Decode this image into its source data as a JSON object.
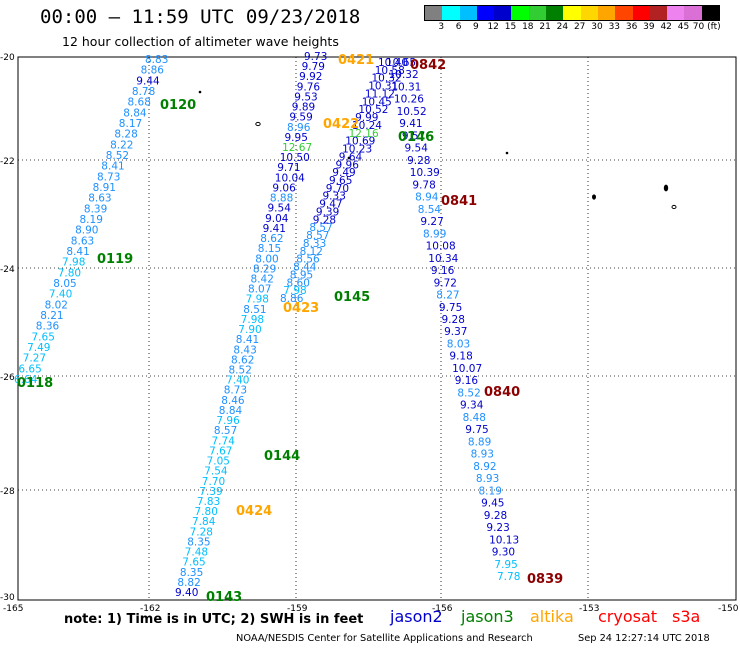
{
  "title": "00:00 – 11:59 UTC 09/23/2018",
  "subtitle": "12 hour collection of altimeter wave heights",
  "colorbar": {
    "colors": [
      "#808080",
      "#00ffff",
      "#00bfff",
      "#0000ff",
      "#0000cd",
      "#00ff00",
      "#32cd32",
      "#008000",
      "#ffff00",
      "#ffd700",
      "#ffa500",
      "#ff4500",
      "#ff0000",
      "#b22222",
      "#ee82ee",
      "#da70d6",
      "#000000"
    ],
    "labels": [
      "3",
      "6",
      "9",
      "12",
      "15",
      "18",
      "21",
      "24",
      "27",
      "30",
      "33",
      "36",
      "39",
      "42",
      "45",
      "70 (ft)"
    ]
  },
  "axes": {
    "lat_labels": [
      "-20",
      "-22",
      "-24",
      "-26",
      "-28",
      "-30"
    ],
    "lon_labels": [
      "-165",
      "-162",
      "-159",
      "-156",
      "-153",
      "-150"
    ]
  },
  "colors": {
    "jason2": "#0000cd",
    "jason3": "#008000",
    "altika": "#ffa500",
    "cryosat": "#8b0000",
    "s3a": "#ff0000",
    "cyan": "#00bfff",
    "lightblue": "#1e90ff"
  },
  "times": {
    "t0118": "0118",
    "t0119": "0119",
    "t0120": "0120",
    "t0143": "0143",
    "t0144": "0144",
    "t0145": "0145",
    "t0146": "0146",
    "t0421": "0421",
    "t0422": "0422",
    "t0423": "0423",
    "t0424": "0424",
    "t0839": "0839",
    "t0840": "0840",
    "t0841": "0841",
    "t0842": "0842"
  },
  "tracks": {
    "t1": [
      "8.83",
      "8.86",
      "9.44",
      "8.78",
      "8.68",
      "8.84",
      "8.17",
      "8.28",
      "8.22",
      "8.52",
      "8.41",
      "8.73",
      "8.91",
      "8.63",
      "8.39",
      "8.19",
      "8.90",
      "8.63",
      "8.41",
      "7.98",
      "7.80",
      "8.05",
      "7.40",
      "8.02",
      "8.21",
      "8.36",
      "7.65",
      "7.49",
      "7.27",
      "6.65",
      "6.64"
    ],
    "t2": [
      "9.40",
      "8.82",
      "8.35",
      "7.65",
      "7.48",
      "8.35",
      "7.28",
      "7.84",
      "7.80",
      "7.83",
      "7.39",
      "7.70",
      "7.54",
      "7.05",
      "7.67",
      "7.74",
      "8.57",
      "7.96",
      "8.84",
      "8.46",
      "8.73",
      "7.40",
      "8.52",
      "8.62",
      "8.43",
      "8.41",
      "7.90",
      "7.98",
      "8.51",
      "7.98",
      "8.07",
      "8.42",
      "8.29",
      "8.00",
      "8.15",
      "8.62",
      "9.41",
      "9.04",
      "9.54",
      "8.88",
      "9.06",
      "10.04",
      "9.71",
      "10.50",
      "12.67",
      "9.95",
      "8.96",
      "9.59",
      "9.89",
      "9.53",
      "9.76",
      "9.92",
      "9.79",
      "9.73"
    ],
    "t3": [
      "8.86",
      "7.98",
      "8.60",
      "8.95",
      "8.44",
      "8.56",
      "8.12",
      "8.33",
      "8.57",
      "8.57",
      "9.28",
      "9.39",
      "9.47",
      "9.33",
      "9.70",
      "9.65",
      "9.49",
      "9.96",
      "9.64",
      "10.23",
      "10.69",
      "12.16",
      "10.24",
      "9.99",
      "10.52",
      "10.45",
      "11.12",
      "10.31",
      "10.32",
      "10.58",
      "10.40"
    ],
    "t4": [
      "10.65",
      "10.32",
      "10.31",
      "10.26",
      "10.52",
      "9.41",
      "9.57",
      "9.54",
      "9.28",
      "10.39",
      "9.78",
      "8.94",
      "8.54",
      "9.27",
      "8.99",
      "10.08",
      "10.34",
      "9.16",
      "9.72",
      "8.27",
      "9.75",
      "9.28",
      "9.37",
      "8.03",
      "9.18",
      "10.07",
      "9.16",
      "8.52",
      "9.34",
      "8.48",
      "9.75",
      "8.89",
      "8.93",
      "8.92",
      "8.93",
      "8.19",
      "9.45",
      "9.28",
      "9.23",
      "10.13",
      "9.30",
      "7.95",
      "7.78"
    ]
  },
  "legend": {
    "note": "note:  1) Time is in UTC;  2) SWH is in feet",
    "jason2": "jason2",
    "jason3": "jason3",
    "altika": "altika",
    "cryosat": "cryosat",
    "s3a": "s3a"
  },
  "credit": "NOAA/NESDIS Center for Satellite Applications and Research",
  "timestamp": "Sep 24 12:27:14 UTC 2018"
}
